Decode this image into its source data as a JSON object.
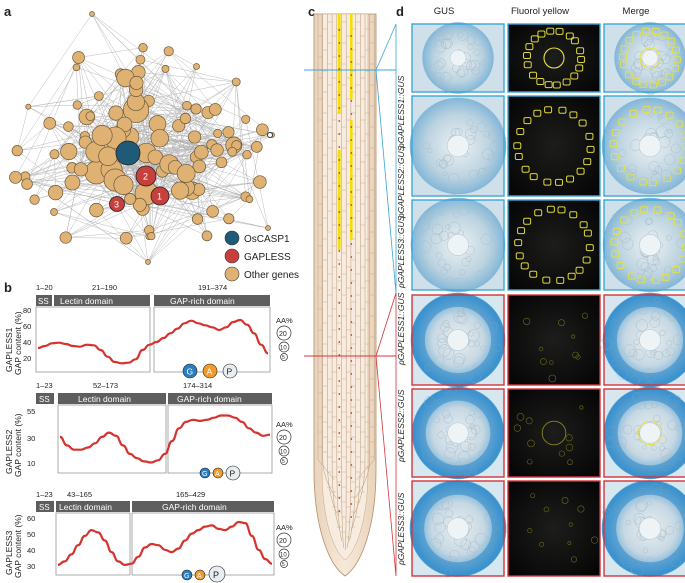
{
  "panels": {
    "a": "a",
    "b": "b",
    "c": "c",
    "d": "d"
  },
  "network": {
    "legend": [
      {
        "label": "OsCASP1",
        "color": "#1f5a78"
      },
      {
        "label": "GAPLESS",
        "color": "#c8403b"
      },
      {
        "label": "Other genes",
        "color": "#dfb173"
      }
    ],
    "gapless_node_labels": [
      "1",
      "2",
      "3"
    ],
    "edge_color": "#b3b3b3",
    "node_outline": "#6e5a3a"
  },
  "domain_plots": [
    {
      "ylabel_gene": "GAPLESS1",
      "ylabel_unit": "GAP content (%)",
      "ss_range": "1–20",
      "ss_label": "SS",
      "lectin_range": "21–190",
      "lectin_label": "Lectin domain",
      "gap_range": "191–374",
      "gap_label": "GAP-rich domain",
      "yticks": [
        "80",
        "60",
        "40",
        "20"
      ],
      "gap_curve": [
        33,
        36,
        40,
        41,
        39,
        36,
        35,
        38,
        37,
        30,
        20,
        12,
        10,
        11,
        16,
        30,
        38,
        42,
        48,
        55,
        62,
        70,
        74,
        70,
        67,
        64,
        60,
        64,
        72,
        75,
        68,
        55,
        38,
        25
      ]
    },
    {
      "ylabel_gene": "GAPLESS2",
      "ylabel_unit": "GAP content (%)",
      "ss_range": "1–23",
      "ss_label": "SS",
      "lectin_range": "52–173",
      "lectin_label": "Lectin domain",
      "gap_range": "174–314",
      "gap_label": "GAP-rich domain",
      "yticks": [
        "55",
        "30",
        "10"
      ],
      "gap_curve": [
        32,
        24,
        20,
        20,
        22,
        26,
        32,
        36,
        33,
        24,
        16,
        12,
        9,
        8,
        10,
        16,
        28,
        40,
        46,
        48,
        47,
        48,
        50,
        52,
        52,
        50,
        46,
        40,
        36,
        33,
        34
      ]
    },
    {
      "ylabel_gene": "GAPLESS3",
      "ylabel_unit": "GAP content (%)",
      "ss_range": "1–23",
      "ss_label": "SS",
      "lectin_range": "43–165",
      "lectin_label": "Lectin domain",
      "gap_range": "165–429",
      "gap_label": "GAP-rich domain",
      "yticks": [
        "60",
        "50",
        "40",
        "30"
      ],
      "gap_curve": [
        27,
        30,
        36,
        44,
        52,
        57,
        55,
        48,
        38,
        30,
        27,
        28,
        34,
        42,
        45,
        44,
        40,
        38,
        41,
        48,
        54,
        57,
        60,
        61,
        58,
        57,
        60,
        64,
        63,
        52,
        40,
        32,
        28
      ]
    }
  ],
  "aa_legend": {
    "title": "AA%",
    "sizes": [
      "20",
      "10",
      "5"
    ]
  },
  "aa_badges": [
    "G",
    "A",
    "P"
  ],
  "micrograph": {
    "columns": [
      "GUS",
      "Fluorol yellow",
      "Merge"
    ],
    "rows": [
      "pGAPLESS1::GUS",
      "pGAPLESS2::GUS",
      "pGAPLESS3::GUS",
      "pGAPLESS1::GUS",
      "pGAPLESS2::GUS",
      "pGAPLESS3::GUS"
    ],
    "upper_frame_color": "#3aa7d6",
    "lower_frame_color": "#d3343a"
  }
}
